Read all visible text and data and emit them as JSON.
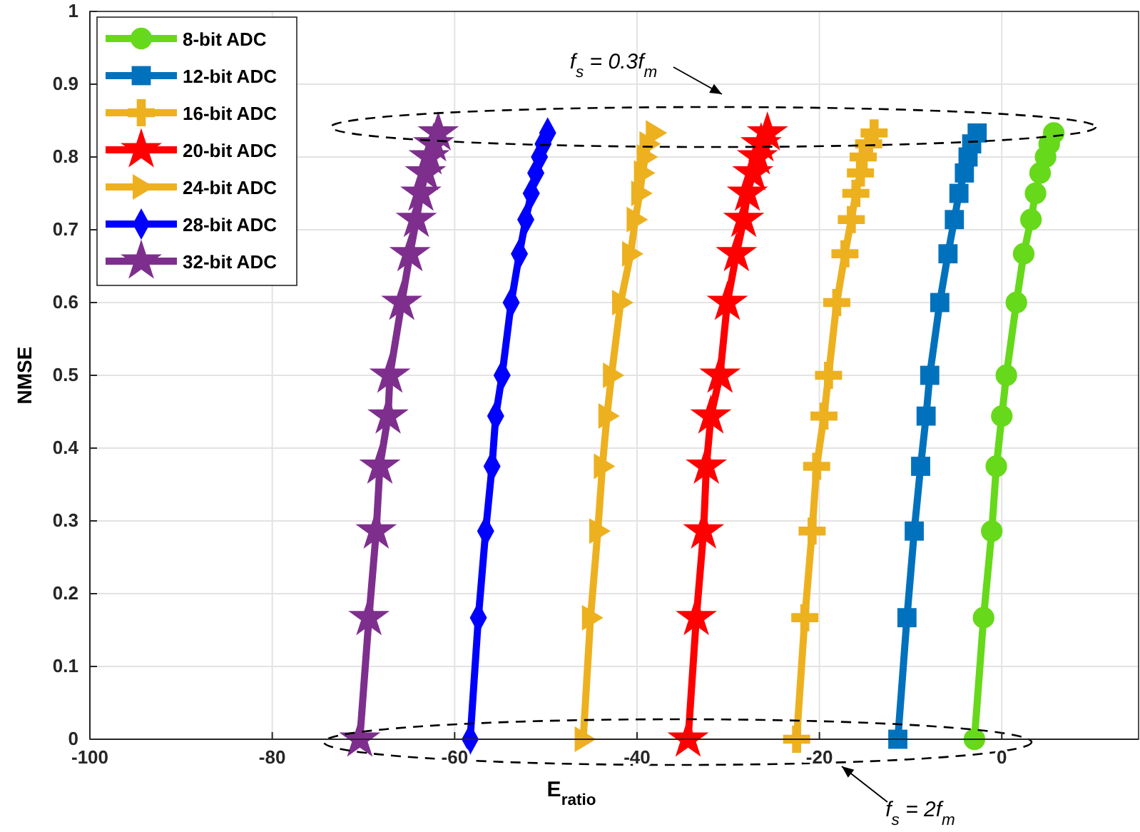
{
  "chart_data": {
    "type": "line",
    "xlabel": "E$_{ratio}$",
    "ylabel": "NMSE",
    "xlim": [
      -100,
      15
    ],
    "xticks": [
      -100,
      -80,
      -60,
      -40,
      -20,
      0
    ],
    "ylim": [
      0,
      1
    ],
    "yticks": [
      0,
      0.1,
      0.2,
      0.3,
      0.4,
      0.5,
      0.6,
      0.7,
      0.8,
      0.9,
      1
    ],
    "grid": true,
    "legend": "top left",
    "line_style": "solid",
    "annotations": [
      "f$_{s}$ = 0.3f$_{m}$",
      "f$_{s}$ = 2f$_{m}$"
    ],
    "series": [
      {
        "name": "8-bit ADC",
        "color": "#66d91a",
        "marker": "circle",
        "x": [
          -3.0,
          -2.0,
          -1.1,
          -0.6,
          0,
          0.5,
          1.6,
          2.4,
          3.2,
          3.7,
          4.2,
          4.8,
          5.2,
          5.7
        ],
        "values": [
          0,
          0.167,
          0.286,
          0.375,
          0.444,
          0.5,
          0.6,
          0.667,
          0.714,
          0.75,
          0.778,
          0.8,
          0.818,
          0.833
        ]
      },
      {
        "name": "12-bit ADC",
        "color": "#0072bd",
        "marker": "square",
        "x": [
          -11.4,
          -10.4,
          -9.6,
          -8.9,
          -8.3,
          -7.9,
          -6.8,
          -5.9,
          -5.2,
          -4.7,
          -4.1,
          -3.7,
          -3.3,
          -2.7
        ],
        "values": [
          0,
          0.167,
          0.286,
          0.375,
          0.444,
          0.5,
          0.6,
          0.667,
          0.714,
          0.75,
          0.778,
          0.8,
          0.818,
          0.833
        ]
      },
      {
        "name": "16-bit ADC",
        "color": "#edb120",
        "marker": "cross",
        "x": [
          -22.5,
          -21.6,
          -20.8,
          -20.3,
          -19.5,
          -19.0,
          -18.1,
          -17.2,
          -16.5,
          -16.0,
          -15.5,
          -15.2,
          -14.6,
          -14.0
        ],
        "values": [
          0,
          0.167,
          0.286,
          0.375,
          0.444,
          0.5,
          0.6,
          0.667,
          0.714,
          0.75,
          0.778,
          0.8,
          0.818,
          0.833
        ]
      },
      {
        "name": "20-bit ADC",
        "color": "#ff0000",
        "marker": "star",
        "x": [
          -34.4,
          -33.5,
          -32.7,
          -32.4,
          -31.9,
          -30.9,
          -30.1,
          -29.1,
          -28.3,
          -27.9,
          -27.3,
          -26.8,
          -26.4,
          -25.7
        ],
        "values": [
          0,
          0.167,
          0.286,
          0.375,
          0.444,
          0.5,
          0.6,
          0.667,
          0.714,
          0.75,
          0.778,
          0.8,
          0.818,
          0.833
        ]
      },
      {
        "name": "24-bit ADC",
        "color": "#edb120",
        "marker": "triangle",
        "x": [
          -45.9,
          -45.1,
          -44.3,
          -43.8,
          -43.3,
          -42.8,
          -41.8,
          -40.7,
          -40.2,
          -39.7,
          -39.4,
          -39.1,
          -38.8,
          -38.1
        ],
        "values": [
          0,
          0.167,
          0.286,
          0.375,
          0.444,
          0.5,
          0.6,
          0.667,
          0.714,
          0.75,
          0.778,
          0.8,
          0.818,
          0.833
        ]
      },
      {
        "name": "28-bit ADC",
        "color": "#0000ff",
        "marker": "diamond",
        "x": [
          -58.3,
          -57.4,
          -56.6,
          -55.9,
          -55.5,
          -54.8,
          -53.8,
          -52.9,
          -52.2,
          -51.6,
          -51.1,
          -50.7,
          -50.3,
          -49.8
        ],
        "values": [
          0,
          0.167,
          0.286,
          0.375,
          0.444,
          0.5,
          0.6,
          0.667,
          0.714,
          0.75,
          0.778,
          0.8,
          0.818,
          0.833
        ]
      },
      {
        "name": "32-bit ADC",
        "color": "#7e2f8e",
        "marker": "star",
        "x": [
          -70.4,
          -69.4,
          -68.6,
          -68.2,
          -67.3,
          -67.1,
          -65.8,
          -64.9,
          -64.2,
          -63.7,
          -63.2,
          -62.8,
          -62.3,
          -61.8
        ],
        "values": [
          0,
          0.167,
          0.286,
          0.375,
          0.444,
          0.5,
          0.6,
          0.667,
          0.714,
          0.75,
          0.778,
          0.8,
          0.818,
          0.833
        ]
      }
    ]
  }
}
